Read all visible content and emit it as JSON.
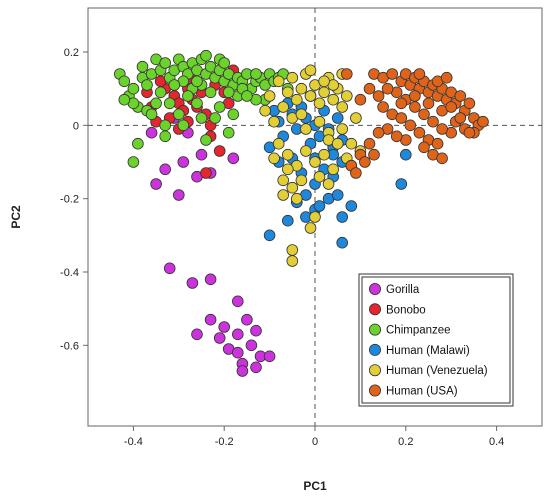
{
  "chart_data": {
    "type": "scatter",
    "title": "",
    "xlabel": "PC1",
    "ylabel": "PC2",
    "xlim": [
      -0.5,
      0.5
    ],
    "ylim": [
      -0.82,
      0.32
    ],
    "xticks": [
      "-0.4",
      "-0.2",
      "0",
      "0.2",
      "0.4"
    ],
    "xtick_values": [
      -0.4,
      -0.2,
      0,
      0.2,
      0.4
    ],
    "yticks": [
      "0.2",
      "0",
      "-0.2",
      "-0.4",
      "-0.6"
    ],
    "ytick_values": [
      0.2,
      0,
      -0.2,
      -0.4,
      -0.6
    ],
    "reference_lines": {
      "x": 0,
      "y": 0,
      "style": "dashed"
    },
    "grid": false,
    "legend_position": "bottom-right",
    "series": [
      {
        "name": "Gorilla",
        "color": "#cc33dd",
        "points": [
          [
            -0.31,
            0.02
          ],
          [
            -0.36,
            -0.02
          ],
          [
            -0.33,
            -0.12
          ],
          [
            -0.35,
            -0.16
          ],
          [
            -0.3,
            -0.19
          ],
          [
            -0.29,
            -0.1
          ],
          [
            -0.25,
            -0.08
          ],
          [
            -0.26,
            -0.14
          ],
          [
            -0.23,
            -0.13
          ],
          [
            -0.18,
            -0.09
          ],
          [
            -0.28,
            -0.02
          ],
          [
            -0.32,
            -0.39
          ],
          [
            -0.27,
            -0.43
          ],
          [
            -0.23,
            -0.42
          ],
          [
            -0.17,
            -0.48
          ],
          [
            -0.23,
            -0.53
          ],
          [
            -0.2,
            -0.55
          ],
          [
            -0.26,
            -0.57
          ],
          [
            -0.21,
            -0.58
          ],
          [
            -0.15,
            -0.53
          ],
          [
            -0.17,
            -0.57
          ],
          [
            -0.13,
            -0.56
          ],
          [
            -0.19,
            -0.61
          ],
          [
            -0.17,
            -0.62
          ],
          [
            -0.14,
            -0.6
          ],
          [
            -0.12,
            -0.63
          ],
          [
            -0.16,
            -0.65
          ],
          [
            -0.13,
            -0.66
          ],
          [
            -0.1,
            -0.63
          ],
          [
            -0.16,
            -0.67
          ]
        ]
      },
      {
        "name": "Bonobo",
        "color": "#e3262f",
        "points": [
          [
            -0.37,
            0.09
          ],
          [
            -0.36,
            0.05
          ],
          [
            -0.33,
            0.1
          ],
          [
            -0.31,
            0.08
          ],
          [
            -0.3,
            0.06
          ],
          [
            -0.29,
            0.04
          ],
          [
            -0.28,
            0.1
          ],
          [
            -0.27,
            0.07
          ],
          [
            -0.26,
            0.05
          ],
          [
            -0.25,
            0.09
          ],
          [
            -0.24,
            0.03
          ],
          [
            -0.23,
            0.0
          ],
          [
            -0.22,
            0.11
          ],
          [
            -0.32,
            0.02
          ],
          [
            -0.35,
            0.01
          ],
          [
            -0.27,
            0.13
          ],
          [
            -0.2,
            0.09
          ],
          [
            -0.19,
            0.06
          ],
          [
            -0.21,
            -0.07
          ],
          [
            -0.23,
            -0.03
          ],
          [
            -0.3,
            -0.01
          ],
          [
            -0.34,
            0.12
          ],
          [
            -0.28,
            0.01
          ],
          [
            -0.24,
            -0.13
          ],
          [
            -0.18,
            0.15
          ]
        ]
      },
      {
        "name": "Chimpanzee",
        "color": "#6cd22c",
        "points": [
          [
            -0.43,
            0.14
          ],
          [
            -0.42,
            0.12
          ],
          [
            -0.41,
            0.08
          ],
          [
            -0.4,
            0.1
          ],
          [
            -0.39,
            0.05
          ],
          [
            -0.38,
            0.13
          ],
          [
            -0.38,
            0.16
          ],
          [
            -0.37,
            0.11
          ],
          [
            -0.36,
            0.14
          ],
          [
            -0.35,
            0.18
          ],
          [
            -0.34,
            0.15
          ],
          [
            -0.33,
            0.17
          ],
          [
            -0.32,
            0.13
          ],
          [
            -0.31,
            0.15
          ],
          [
            -0.3,
            0.18
          ],
          [
            -0.29,
            0.16
          ],
          [
            -0.28,
            0.14
          ],
          [
            -0.27,
            0.17
          ],
          [
            -0.26,
            0.15
          ],
          [
            -0.25,
            0.18
          ],
          [
            -0.24,
            0.14
          ],
          [
            -0.23,
            0.16
          ],
          [
            -0.22,
            0.13
          ],
          [
            -0.21,
            0.15
          ],
          [
            -0.2,
            0.12
          ],
          [
            -0.19,
            0.14
          ],
          [
            -0.18,
            0.11
          ],
          [
            -0.17,
            0.13
          ],
          [
            -0.16,
            0.12
          ],
          [
            -0.15,
            0.14
          ],
          [
            -0.14,
            0.1
          ],
          [
            -0.13,
            0.12
          ],
          [
            -0.12,
            0.13
          ],
          [
            -0.11,
            0.11
          ],
          [
            -0.1,
            0.14
          ],
          [
            -0.09,
            0.12
          ],
          [
            -0.11,
            0.07
          ],
          [
            -0.13,
            0.07
          ],
          [
            -0.17,
            0.08
          ],
          [
            -0.21,
            0.05
          ],
          [
            -0.19,
            -0.02
          ],
          [
            -0.18,
            0.03
          ],
          [
            -0.22,
            0.02
          ],
          [
            -0.25,
            0.11
          ],
          [
            -0.27,
            0.1
          ],
          [
            -0.35,
            0.06
          ],
          [
            -0.37,
            0.04
          ],
          [
            -0.4,
            0.06
          ],
          [
            -0.39,
            -0.05
          ],
          [
            -0.4,
            -0.1
          ],
          [
            -0.33,
            -0.03
          ],
          [
            -0.3,
            0.03
          ],
          [
            -0.26,
            0.12
          ],
          [
            -0.24,
            0.19
          ],
          [
            -0.29,
            0.12
          ],
          [
            -0.21,
            0.18
          ],
          [
            -0.2,
            0.17
          ],
          [
            -0.16,
            0.1
          ],
          [
            -0.23,
            0.09
          ],
          [
            -0.34,
            0.09
          ],
          [
            -0.31,
            0.11
          ],
          [
            -0.28,
            0.08
          ],
          [
            -0.36,
            0.03
          ],
          [
            -0.42,
            0.07
          ],
          [
            -0.32,
            0.06
          ],
          [
            -0.19,
            0.09
          ],
          [
            -0.15,
            0.08
          ],
          [
            -0.13,
            0.14
          ],
          [
            -0.08,
            0.13
          ],
          [
            -0.07,
            0.14
          ],
          [
            -0.06,
            0.1
          ],
          [
            -0.26,
            0.06
          ],
          [
            -0.25,
            0.02
          ],
          [
            -0.33,
            0.0
          ],
          [
            -0.29,
            0.0
          ],
          [
            -0.24,
            -0.04
          ]
        ]
      },
      {
        "name": "Human (Malawi)",
        "color": "#1e88dd",
        "points": [
          [
            -0.09,
            0.04
          ],
          [
            -0.08,
            0.01
          ],
          [
            -0.07,
            -0.03
          ],
          [
            -0.06,
            0.06
          ],
          [
            -0.05,
            0.03
          ],
          [
            -0.04,
            -0.01
          ],
          [
            -0.03,
            0.05
          ],
          [
            -0.02,
            0.02
          ],
          [
            -0.01,
            -0.05
          ],
          [
            0.0,
            0.0
          ],
          [
            0.01,
            -0.03
          ],
          [
            0.02,
            0.04
          ],
          [
            0.03,
            -0.01
          ],
          [
            0.04,
            -0.06
          ],
          [
            0.05,
            0.02
          ],
          [
            0.06,
            -0.04
          ],
          [
            -0.1,
            -0.06
          ],
          [
            -0.08,
            -0.1
          ],
          [
            -0.05,
            -0.09
          ],
          [
            -0.03,
            -0.13
          ],
          [
            0.0,
            -0.09
          ],
          [
            0.02,
            -0.12
          ],
          [
            0.04,
            -0.14
          ],
          [
            0.06,
            -0.1
          ],
          [
            -0.02,
            -0.19
          ],
          [
            0.0,
            -0.16
          ],
          [
            -0.04,
            -0.21
          ],
          [
            -0.06,
            -0.26
          ],
          [
            -0.02,
            -0.25
          ],
          [
            0.0,
            -0.23
          ],
          [
            0.03,
            -0.2
          ],
          [
            0.05,
            -0.19
          ],
          [
            0.08,
            -0.22
          ],
          [
            0.06,
            -0.25
          ],
          [
            -0.1,
            -0.3
          ],
          [
            0.06,
            -0.32
          ],
          [
            0.04,
            -0.08
          ],
          [
            -0.01,
            0.08
          ],
          [
            0.01,
            -0.22
          ],
          [
            0.2,
            -0.08
          ],
          [
            0.19,
            -0.16
          ]
        ]
      },
      {
        "name": "Human (Venezuela)",
        "color": "#e2cf36",
        "points": [
          [
            -0.1,
            0.08
          ],
          [
            -0.08,
            0.12
          ],
          [
            -0.07,
            0.05
          ],
          [
            -0.06,
            0.09
          ],
          [
            -0.05,
            0.13
          ],
          [
            -0.04,
            0.07
          ],
          [
            -0.03,
            0.1
          ],
          [
            -0.02,
            0.14
          ],
          [
            -0.01,
            0.08
          ],
          [
            0.0,
            0.11
          ],
          [
            0.01,
            0.06
          ],
          [
            0.02,
            0.09
          ],
          [
            0.03,
            0.13
          ],
          [
            0.04,
            0.07
          ],
          [
            0.05,
            0.1
          ],
          [
            0.06,
            0.05
          ],
          [
            0.07,
            0.08
          ],
          [
            -0.05,
            0.02
          ],
          [
            -0.02,
            -0.01
          ],
          [
            0.01,
            0.01
          ],
          [
            0.03,
            -0.02
          ],
          [
            0.06,
            -0.01
          ],
          [
            0.08,
            -0.05
          ],
          [
            -0.08,
            -0.05
          ],
          [
            -0.06,
            -0.08
          ],
          [
            -0.04,
            -0.11
          ],
          [
            -0.02,
            -0.07
          ],
          [
            0.0,
            -0.1
          ],
          [
            0.02,
            -0.08
          ],
          [
            0.04,
            -0.12
          ],
          [
            0.07,
            -0.09
          ],
          [
            0.1,
            -0.07
          ],
          [
            -0.07,
            -0.15
          ],
          [
            -0.05,
            -0.17
          ],
          [
            -0.03,
            -0.15
          ],
          [
            0.01,
            -0.14
          ],
          [
            0.03,
            -0.16
          ],
          [
            -0.07,
            -0.19
          ],
          [
            -0.04,
            -0.2
          ],
          [
            0.0,
            -0.25
          ],
          [
            -0.01,
            -0.28
          ],
          [
            -0.05,
            -0.34
          ],
          [
            -0.05,
            -0.37
          ],
          [
            0.03,
            -0.04
          ],
          [
            0.09,
            0.02
          ],
          [
            -0.09,
            0.01
          ],
          [
            -0.11,
            0.04
          ],
          [
            0.06,
            0.14
          ],
          [
            -0.01,
            0.15
          ],
          [
            0.04,
            0.11
          ],
          [
            -0.03,
            0.03
          ],
          [
            0.05,
            -0.05
          ],
          [
            0.08,
            -0.11
          ],
          [
            -0.06,
            -0.12
          ],
          [
            -0.09,
            -0.09
          ],
          [
            0.02,
            0.12
          ]
        ]
      },
      {
        "name": "Human (USA)",
        "color": "#e0631a",
        "points": [
          [
            0.13,
            0.14
          ],
          [
            0.15,
            0.13
          ],
          [
            0.17,
            0.14
          ],
          [
            0.19,
            0.12
          ],
          [
            0.2,
            0.14
          ],
          [
            0.21,
            0.11
          ],
          [
            0.22,
            0.13
          ],
          [
            0.23,
            0.1
          ],
          [
            0.24,
            0.12
          ],
          [
            0.25,
            0.09
          ],
          [
            0.26,
            0.11
          ],
          [
            0.27,
            0.08
          ],
          [
            0.28,
            0.1
          ],
          [
            0.29,
            0.07
          ],
          [
            0.3,
            0.09
          ],
          [
            0.31,
            0.06
          ],
          [
            0.32,
            0.08
          ],
          [
            0.33,
            0.04
          ],
          [
            0.34,
            0.06
          ],
          [
            0.35,
            0.02
          ],
          [
            0.36,
            0.0
          ],
          [
            0.35,
            -0.02
          ],
          [
            0.33,
            -0.01
          ],
          [
            0.31,
            0.01
          ],
          [
            0.3,
            -0.02
          ],
          [
            0.28,
            -0.01
          ],
          [
            0.26,
            0.01
          ],
          [
            0.24,
            0.03
          ],
          [
            0.22,
            0.05
          ],
          [
            0.2,
            0.07
          ],
          [
            0.18,
            0.09
          ],
          [
            0.16,
            0.1
          ],
          [
            0.14,
            0.08
          ],
          [
            0.15,
            0.05
          ],
          [
            0.17,
            0.03
          ],
          [
            0.19,
            0.02
          ],
          [
            0.21,
            0.0
          ],
          [
            0.23,
            -0.02
          ],
          [
            0.25,
            -0.04
          ],
          [
            0.27,
            -0.05
          ],
          [
            0.24,
            -0.06
          ],
          [
            0.2,
            -0.04
          ],
          [
            0.18,
            -0.03
          ],
          [
            0.16,
            -0.01
          ],
          [
            0.14,
            -0.02
          ],
          [
            0.12,
            -0.05
          ],
          [
            0.1,
            -0.08
          ],
          [
            0.08,
            -0.11
          ],
          [
            0.11,
            -0.1
          ],
          [
            0.13,
            -0.08
          ],
          [
            0.22,
            0.08
          ],
          [
            0.25,
            0.06
          ],
          [
            0.28,
            0.04
          ],
          [
            0.3,
            0.05
          ],
          [
            0.32,
            0.02
          ],
          [
            0.27,
            0.12
          ],
          [
            0.29,
            0.13
          ],
          [
            0.23,
            0.14
          ],
          [
            0.19,
            0.06
          ],
          [
            0.1,
            0.07
          ],
          [
            0.12,
            0.1
          ],
          [
            0.07,
            0.14
          ],
          [
            0.34,
            -0.02
          ],
          [
            0.37,
            0.01
          ],
          [
            0.26,
            -0.08
          ],
          [
            0.28,
            -0.09
          ],
          [
            0.09,
            -0.13
          ]
        ]
      }
    ]
  }
}
